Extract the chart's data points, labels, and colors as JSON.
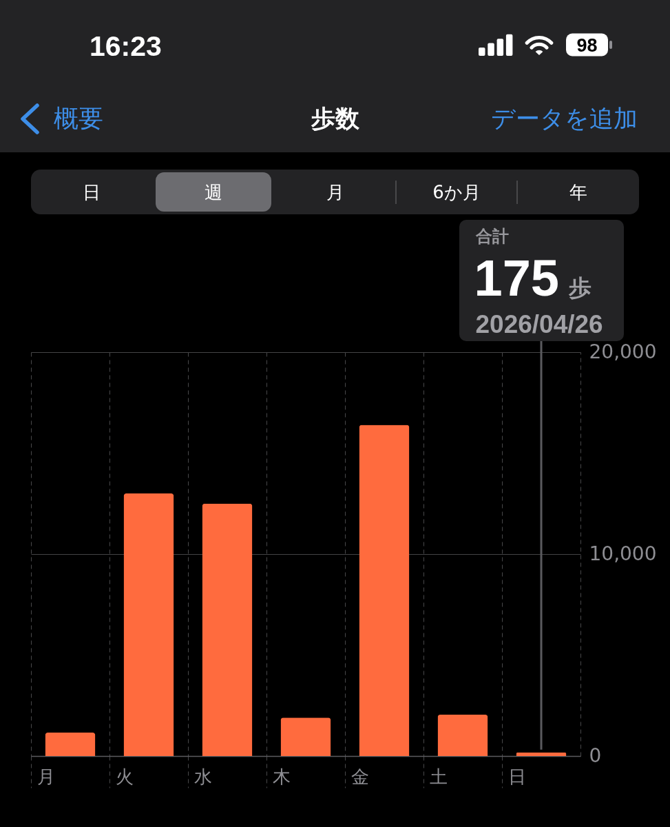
{
  "chart_data": {
    "type": "bar",
    "title": "歩数",
    "categories": [
      "月",
      "火",
      "水",
      "木",
      "金",
      "土",
      "日"
    ],
    "values": [
      1160,
      13000,
      12500,
      1900,
      16400,
      2050,
      175
    ],
    "color": "#ff6b3e",
    "ylim": [
      0,
      20000
    ],
    "yticks": [
      0,
      {
        "value": 10000,
        "label": "10,000"
      },
      {
        "value": 20000,
        "label": "20,000"
      }
    ],
    "grid": true,
    "ref_lines": [
      {
        "axis": "x",
        "value": "日",
        "color": "#5a5a5e"
      }
    ],
    "annotations": [
      "16:23",
      "98",
      "概要",
      "データを追加",
      "日",
      "週",
      "月",
      "6か月",
      "年",
      "合計",
      "175",
      "歩",
      "2026/04/26"
    ]
  }
}
